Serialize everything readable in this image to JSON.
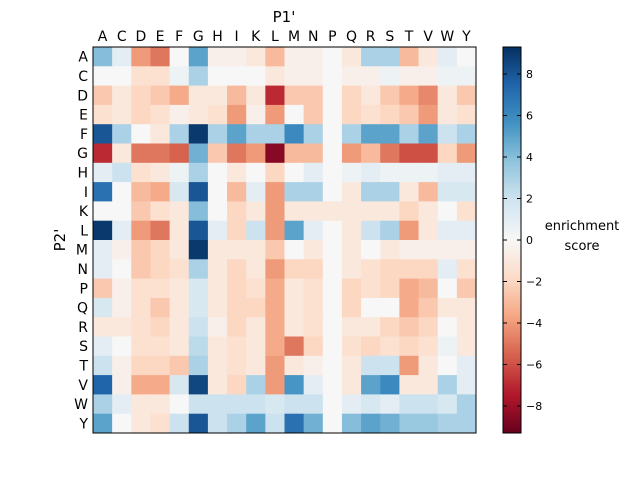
{
  "chart_data": {
    "type": "heatmap",
    "xlabel": "P1'",
    "ylabel": "P2'",
    "x_categories": [
      "A",
      "C",
      "D",
      "E",
      "F",
      "G",
      "H",
      "I",
      "K",
      "L",
      "M",
      "N",
      "P",
      "Q",
      "R",
      "S",
      "T",
      "V",
      "W",
      "Y"
    ],
    "y_categories": [
      "A",
      "C",
      "D",
      "E",
      "F",
      "G",
      "H",
      "I",
      "K",
      "L",
      "M",
      "N",
      "P",
      "Q",
      "R",
      "S",
      "T",
      "V",
      "W",
      "Y"
    ],
    "values": [
      [
        4,
        1,
        -4,
        -5,
        0,
        5,
        -0.5,
        -0.5,
        -1,
        -3,
        -0.5,
        -0.5,
        0,
        -1,
        3,
        3,
        -3,
        -1,
        1,
        0
      ],
      [
        0,
        0,
        -1.5,
        -1.5,
        0.5,
        3,
        0,
        0,
        0,
        -1,
        -0.5,
        -0.5,
        0,
        -0.5,
        -0.5,
        0.5,
        -0.5,
        -0.5,
        0.5,
        0.5
      ],
      [
        -2.5,
        -1,
        -2,
        -2.5,
        -3.5,
        -1,
        -1,
        -3,
        -1,
        -7,
        -2.5,
        -2.5,
        0,
        -2,
        -1,
        -2.5,
        -3.5,
        -4.5,
        -1,
        -2.5
      ],
      [
        -1.5,
        -1,
        -2,
        -1.5,
        -0.5,
        -1,
        -1.5,
        -4,
        -0.5,
        -4,
        0,
        -2.5,
        0,
        -2,
        -1.5,
        -2,
        -2.5,
        -4,
        -1,
        -1.5
      ],
      [
        8,
        3,
        0,
        -1,
        3,
        9,
        3,
        5,
        3,
        3,
        6,
        3,
        0,
        3,
        5,
        5,
        3,
        5,
        2,
        3
      ],
      [
        -7,
        -1,
        -5,
        -5,
        -5.5,
        4.5,
        -2.5,
        -5,
        -4,
        -8.5,
        -3,
        -3,
        0,
        -4,
        -3,
        -5,
        -6,
        -6,
        -2,
        -4
      ],
      [
        1,
        2,
        -1.5,
        -1,
        0.5,
        3,
        0,
        -1,
        0,
        -2,
        0,
        1,
        0,
        0.5,
        1,
        0.5,
        0.5,
        0.5,
        1,
        1
      ],
      [
        7,
        0,
        -3,
        -3.5,
        1.5,
        8,
        0,
        -3,
        1,
        -4,
        3,
        3,
        0,
        -1,
        3,
        3,
        -1,
        -3,
        1.5,
        1.5
      ],
      [
        0,
        0,
        -2.5,
        -1.5,
        -1,
        4,
        0,
        -2,
        -1,
        -4,
        -1,
        -1,
        -1,
        -1,
        -1,
        -1,
        -2,
        -1,
        0,
        -1.5
      ],
      [
        9,
        1,
        -4,
        -5,
        -1,
        8,
        1,
        -2,
        2,
        -4,
        5,
        1,
        0,
        -1,
        2,
        3,
        -4,
        -1,
        1,
        1
      ],
      [
        1,
        -0.5,
        -2.5,
        -2,
        -1,
        9,
        -1,
        -1,
        -1,
        -2.5,
        0,
        -1,
        0,
        -1,
        0,
        -1,
        -0.5,
        -0.5,
        -0.5,
        -0.5
      ],
      [
        1,
        0,
        -2.5,
        -2,
        -1.5,
        3,
        -1,
        -2,
        -1,
        -4,
        -2,
        -2,
        0,
        -1,
        -1.5,
        -2,
        -2,
        -2,
        1,
        -1.5
      ],
      [
        -2.5,
        -0.5,
        -1.5,
        -1.5,
        -1,
        1.5,
        -1,
        -2,
        -1.5,
        -3.5,
        -1,
        -1.5,
        0,
        -2,
        -1.5,
        -2,
        -3.5,
        -3,
        0,
        -2.5
      ],
      [
        1.5,
        -0.5,
        -1.5,
        -2.5,
        -1,
        1.5,
        -1,
        -2,
        -2,
        -3.5,
        -1,
        -1.5,
        0,
        -2,
        0,
        0,
        -3.5,
        -2.5,
        -1,
        -1
      ],
      [
        -1,
        -1,
        -1.5,
        -2,
        -1,
        2,
        -0.5,
        -2,
        -1,
        -3.5,
        -1,
        -1.5,
        0,
        -1,
        -1,
        -2,
        -2.5,
        -2,
        0,
        -1
      ],
      [
        1,
        0,
        -1.5,
        -1.5,
        -1,
        2.5,
        -1,
        -1.5,
        -1,
        -3.5,
        -5,
        -2,
        0,
        -1.5,
        -2,
        -1.5,
        -2,
        -1.5,
        0.5,
        -1
      ],
      [
        2,
        -0.5,
        -2,
        -2,
        -2.5,
        3,
        -1,
        -1.5,
        -1,
        -4,
        -1,
        -0.5,
        0,
        -1,
        2,
        2,
        -4,
        -1,
        0,
        1
      ],
      [
        7.5,
        -0.5,
        -3.5,
        -3.5,
        1.5,
        8.5,
        -1,
        -2,
        3,
        -4,
        5.5,
        1,
        0,
        -1,
        5,
        6,
        -1,
        -1,
        3,
        1
      ],
      [
        3,
        1,
        -1,
        -1,
        0,
        2,
        2,
        2,
        2,
        1.5,
        2,
        2,
        0,
        1,
        1.5,
        1,
        2,
        2,
        1.5,
        3
      ],
      [
        5,
        0,
        -1,
        -1.5,
        2,
        8,
        2,
        3,
        5,
        2,
        7,
        4.5,
        0,
        4,
        5,
        4.5,
        3.5,
        3.5,
        3,
        3
      ]
    ],
    "colorbar": {
      "label_line1": "enrichment",
      "label_line2": "score",
      "vmin": -9.3,
      "vmax": 9.3,
      "ticks": [
        -8,
        -6,
        -4,
        -2,
        0,
        2,
        4,
        6,
        8
      ],
      "tick_labels": [
        "−8",
        "−6",
        "−4",
        "−2",
        "0",
        "2",
        "4",
        "6",
        "8"
      ],
      "colormap": "RdBu",
      "colors": [
        "#67001f",
        "#b2182b",
        "#d6604d",
        "#f4a582",
        "#fddbc7",
        "#f7f7f7",
        "#d1e5f0",
        "#92c5de",
        "#4393c3",
        "#2166ac",
        "#053061"
      ]
    }
  }
}
